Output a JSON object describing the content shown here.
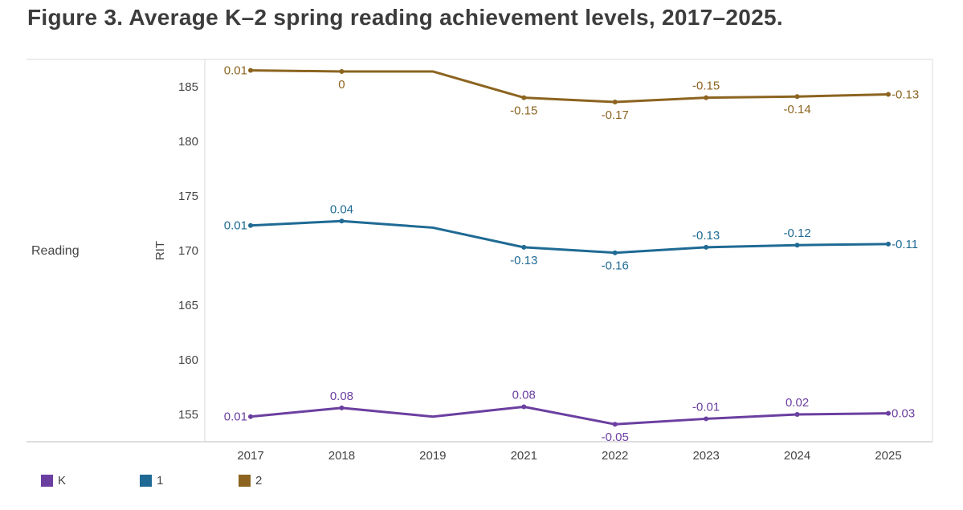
{
  "title": "Figure 3. Average K–2 spring reading achievement levels, 2017–2025.",
  "colors": {
    "K": "#6b3fa0",
    "1": "#1f6a94",
    "2": "#8c6420",
    "grid": "#d9d9d9",
    "axis": "#bdbdbd"
  },
  "chart_data": {
    "type": "line",
    "facet_label": "Reading",
    "ylabel": "RIT",
    "xlabel": "",
    "categories": [
      "2017",
      "2018",
      "2019",
      "2021",
      "2022",
      "2023",
      "2024",
      "2025"
    ],
    "ylim": [
      152.5,
      187.5
    ],
    "yticks": [
      155,
      160,
      165,
      170,
      175,
      180,
      185
    ],
    "grid": false,
    "legend": "bottom-left",
    "series": [
      {
        "name": "K",
        "values": [
          154.8,
          155.6,
          154.8,
          155.7,
          154.1,
          154.6,
          155.0,
          155.1
        ],
        "labels": [
          "0.01",
          "0.08",
          "",
          "0.08",
          "-0.05",
          "-0.01",
          "0.02",
          "0.03"
        ]
      },
      {
        "name": "1",
        "values": [
          172.3,
          172.7,
          172.1,
          170.3,
          169.8,
          170.3,
          170.5,
          170.6
        ],
        "labels": [
          "0.01",
          "0.04",
          "",
          "-0.13",
          "-0.16",
          "-0.13",
          "-0.12",
          "-0.11"
        ]
      },
      {
        "name": "2",
        "values": [
          186.5,
          186.4,
          186.4,
          184.0,
          183.6,
          184.0,
          184.1,
          184.3
        ],
        "labels": [
          "0.01",
          "0",
          "",
          "-0.15",
          "-0.17",
          "-0.15",
          "-0.14",
          "-0.13"
        ]
      }
    ]
  }
}
